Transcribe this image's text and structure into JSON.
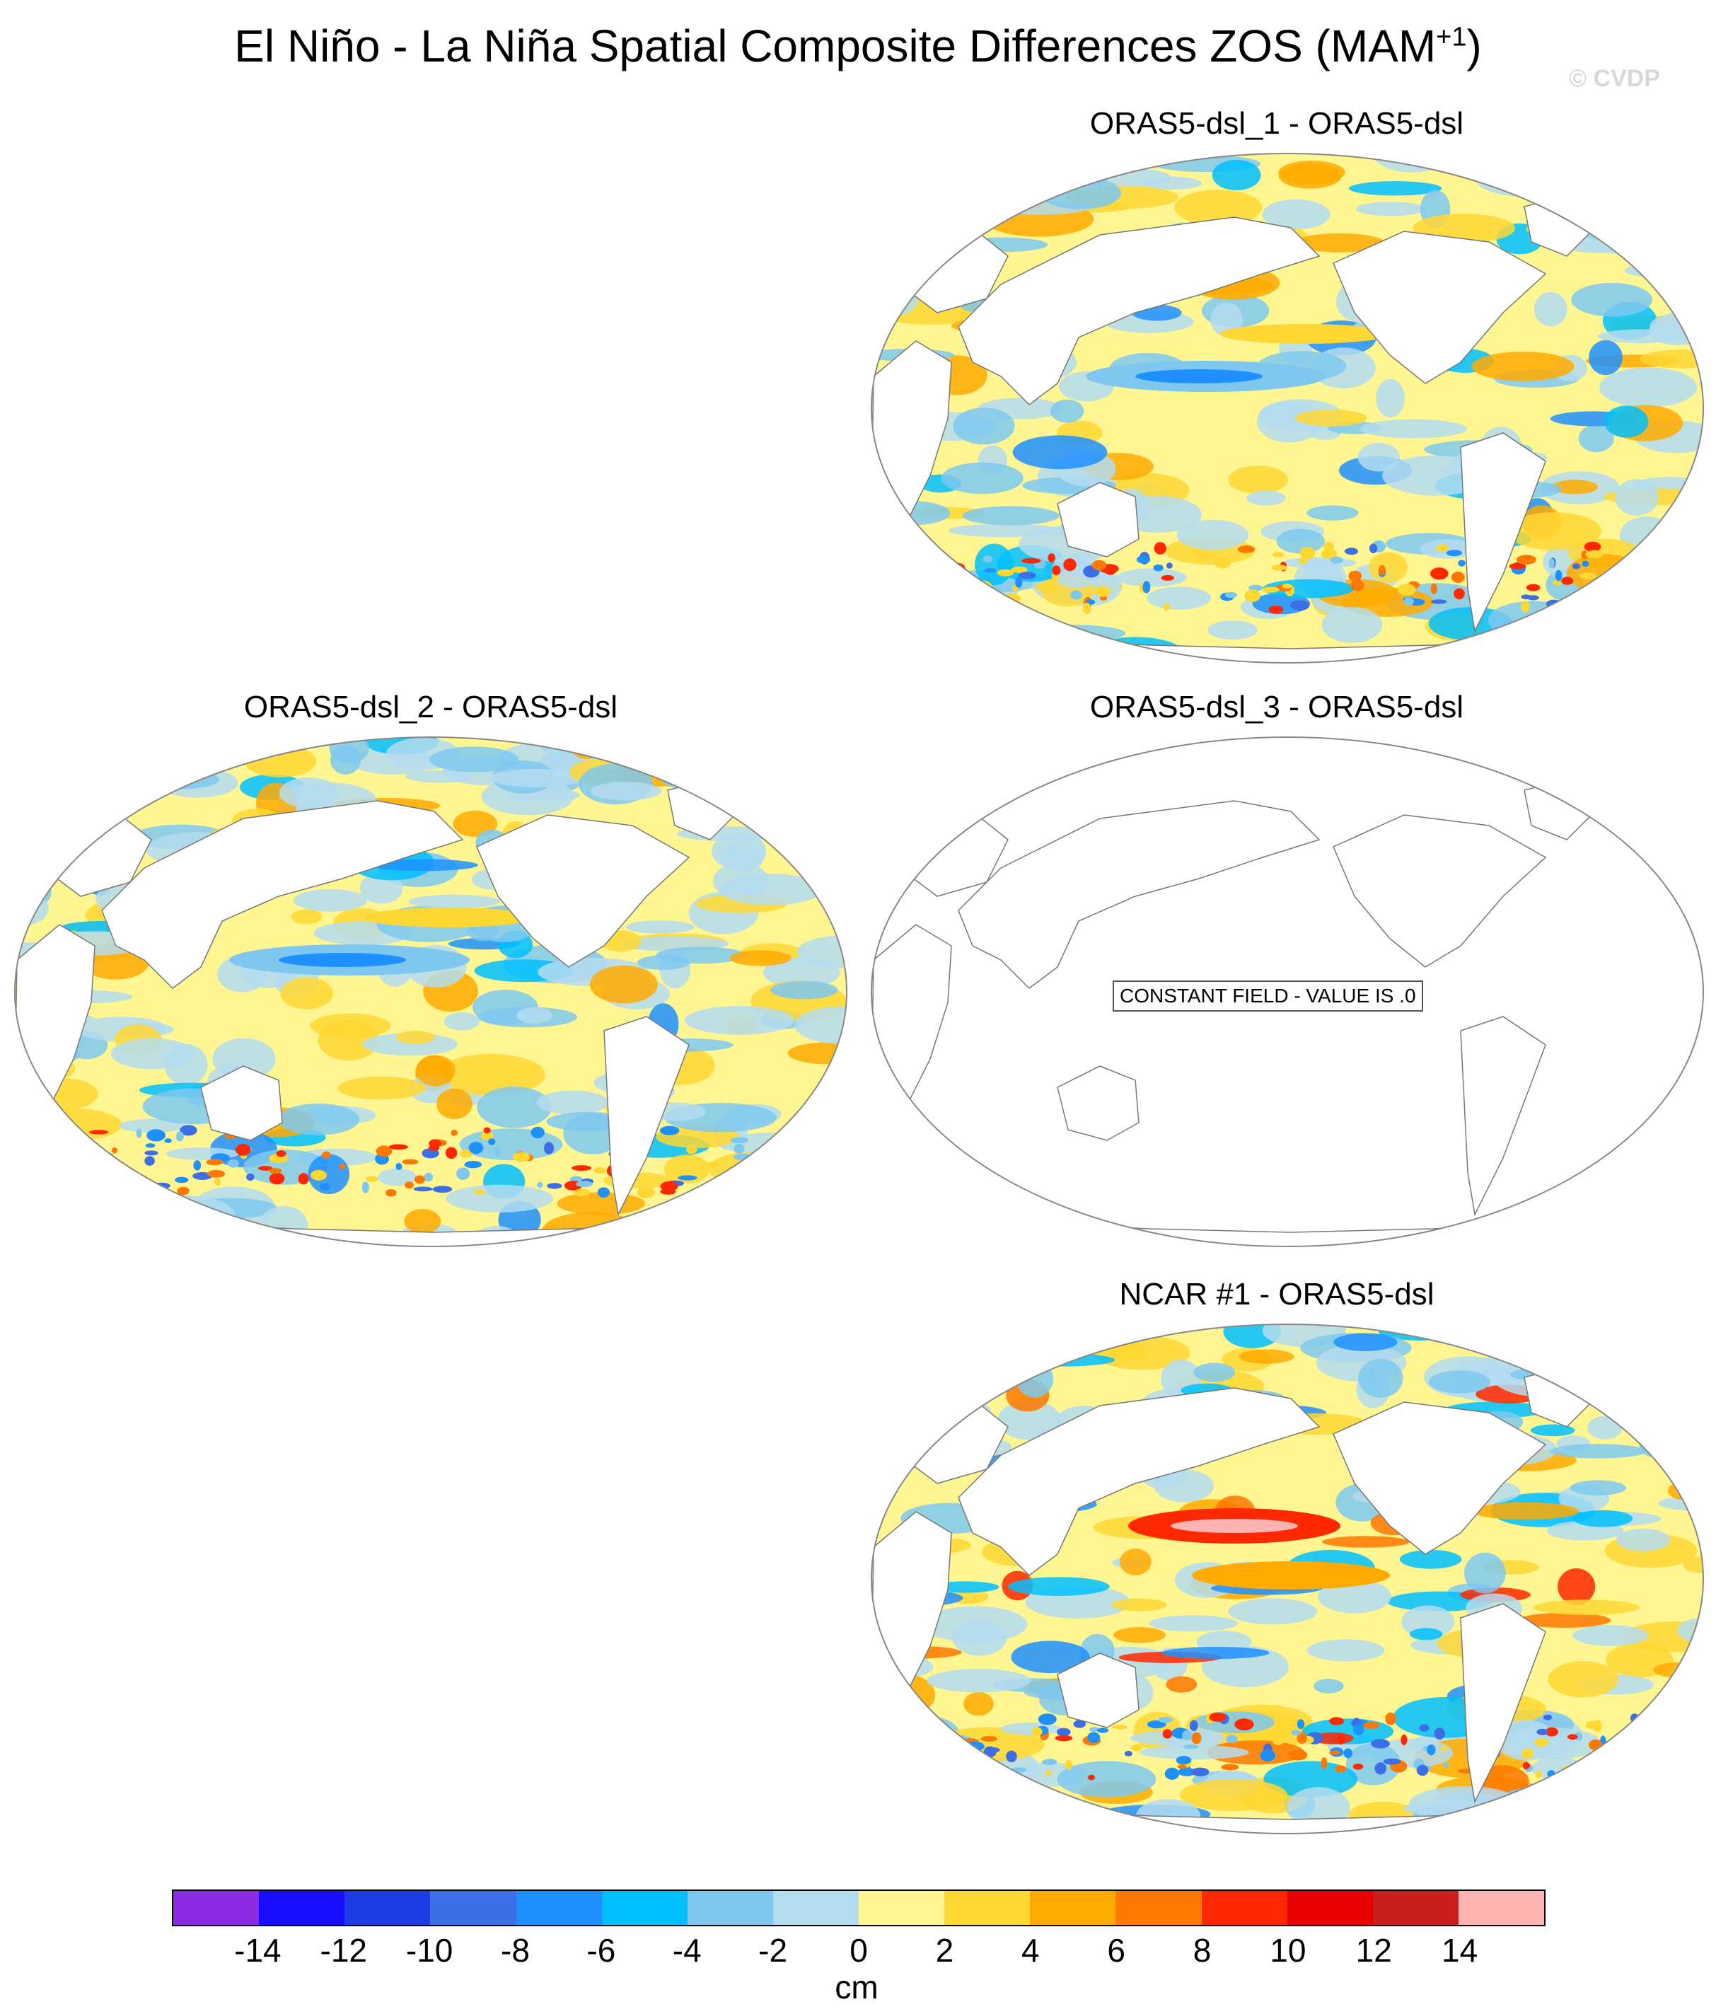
{
  "title": "El Niño - La Niña Spatial Composite Differences ZOS (MAM",
  "title_sup": "+1",
  "title_close": ")",
  "watermark": "© CVDP",
  "panels": [
    {
      "title": "ORAS5-dsl_1 - ORAS5-dsl",
      "field": "variable-mild"
    },
    {
      "title": "ORAS5-dsl_2 - ORAS5-dsl",
      "field": "variable-mild"
    },
    {
      "title": "ORAS5-dsl_3 - ORAS5-dsl",
      "field": "constant",
      "message": "CONSTANT FIELD - VALUE IS .0"
    },
    {
      "title": "NCAR #1 - ORAS5-dsl",
      "field": "variable-strong"
    }
  ],
  "colorbar": {
    "unit": "cm",
    "ticks": [
      "-14",
      "-12",
      "-10",
      "-8",
      "-6",
      "-4",
      "-2",
      "0",
      "2",
      "4",
      "6",
      "8",
      "10",
      "12",
      "14"
    ],
    "colors": [
      "#8a2be2",
      "#1a0dff",
      "#1e3ce6",
      "#3c6ee6",
      "#1e90ff",
      "#00bfff",
      "#7ec8f0",
      "#b4dcf0",
      "#fff591",
      "#ffd732",
      "#ffaa00",
      "#ff7800",
      "#ff2800",
      "#e60000",
      "#c81e1e",
      "#ffb4b4"
    ]
  }
}
